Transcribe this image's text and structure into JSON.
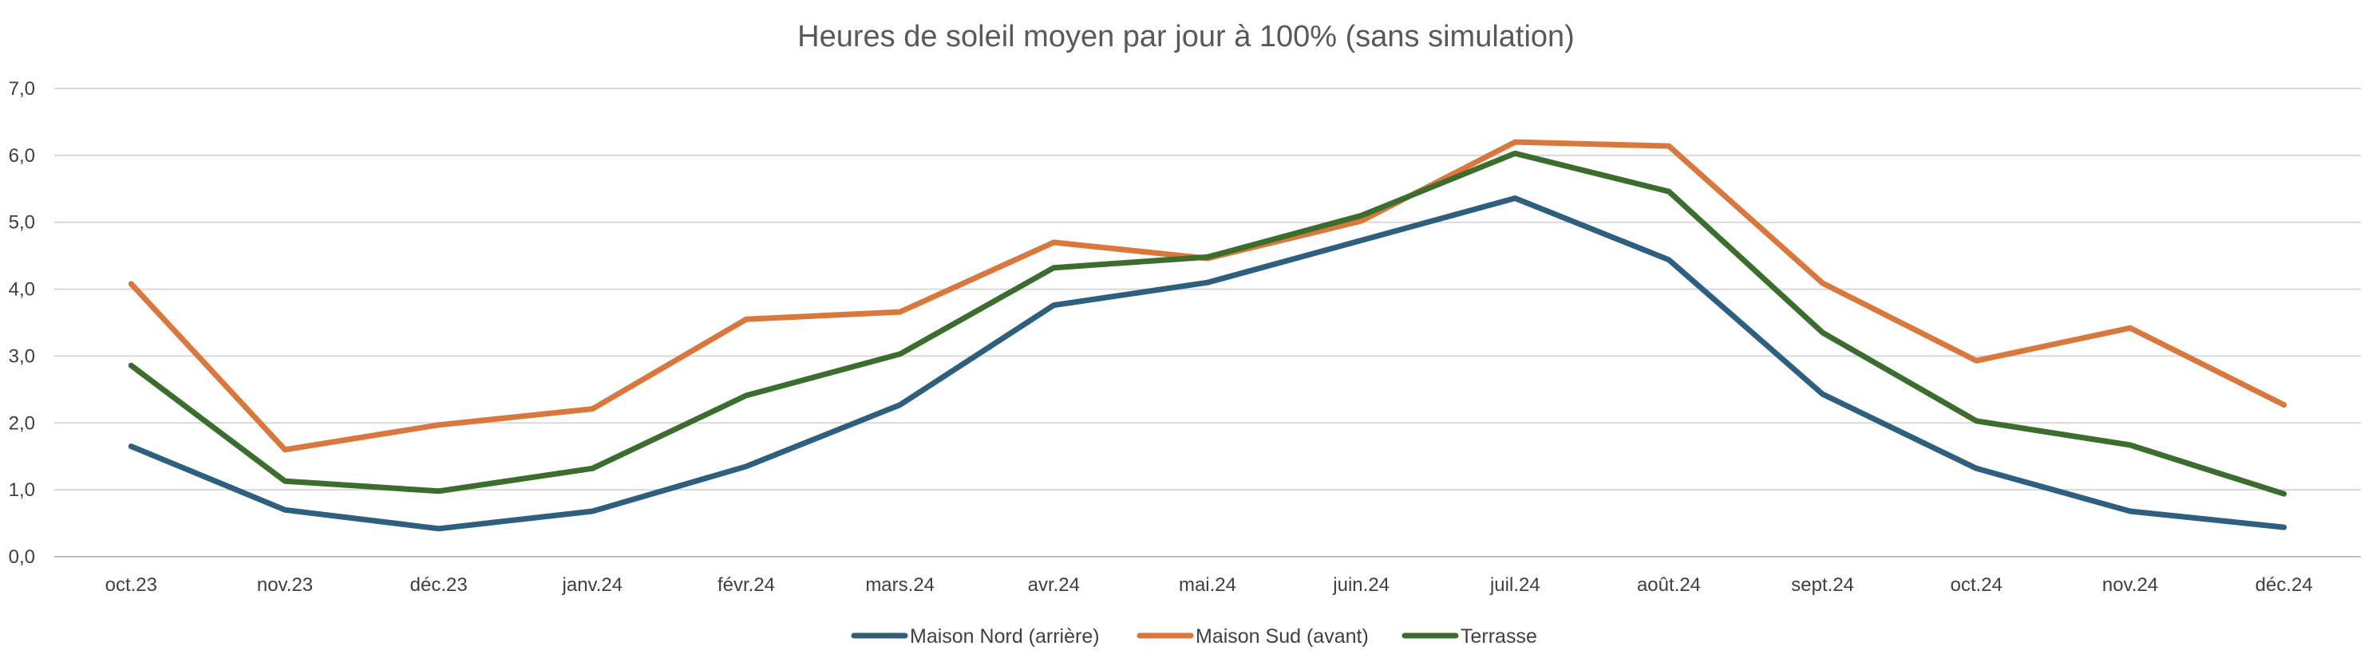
{
  "chart_data": {
    "type": "line",
    "title": "Heures de soleil moyen par jour à 100% (sans simulation)",
    "xlabel": "",
    "ylabel": "",
    "ylim": [
      0,
      7
    ],
    "yticks": [
      "0,0",
      "1,0",
      "2,0",
      "3,0",
      "4,0",
      "5,0",
      "6,0",
      "7,0"
    ],
    "grid": true,
    "legend_position": "bottom",
    "categories": [
      "oct.23",
      "nov.23",
      "déc.23",
      "janv.24",
      "févr.24",
      "mars.24",
      "avr.24",
      "mai.24",
      "juin.24",
      "juil.24",
      "août.24",
      "sept.24",
      "oct.24",
      "nov.24",
      "déc.24"
    ],
    "series": [
      {
        "name": "Maison Nord (arrière)",
        "color": "#2f5f7e",
        "values": [
          1.65,
          0.7,
          0.42,
          0.68,
          1.35,
          2.27,
          3.76,
          4.1,
          4.73,
          5.36,
          4.44,
          2.43,
          1.32,
          0.68,
          0.44
        ]
      },
      {
        "name": "Maison Sud (avant)",
        "color": "#d9773d",
        "values": [
          4.08,
          1.6,
          1.97,
          2.21,
          3.55,
          3.66,
          4.7,
          4.46,
          5.02,
          6.2,
          6.14,
          4.09,
          2.93,
          3.42,
          2.27
        ]
      },
      {
        "name": "Terrasse",
        "color": "#3b6e2d",
        "values": [
          2.86,
          1.13,
          0.98,
          1.32,
          2.41,
          3.03,
          4.32,
          4.48,
          5.1,
          6.03,
          5.46,
          3.35,
          2.03,
          1.67,
          0.94
        ]
      }
    ]
  }
}
